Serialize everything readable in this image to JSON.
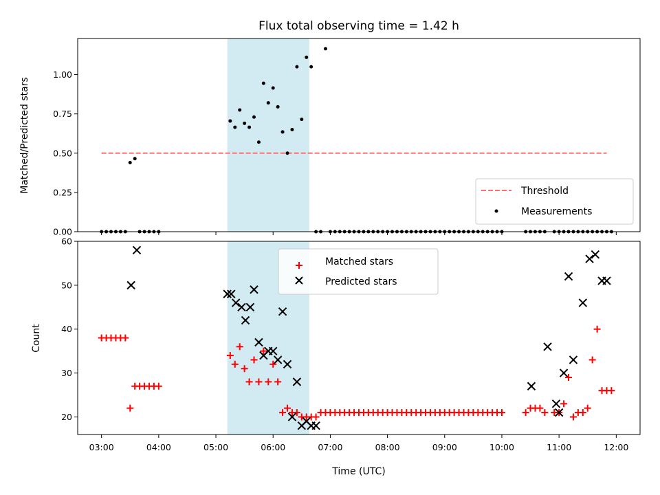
{
  "chart_data": [
    {
      "type": "scatter",
      "title": "Flux total observing time = 1.42 h",
      "xlabel": "",
      "ylabel": "Matched/Predicted stars",
      "xlim": [
        "02:35",
        "12:25"
      ],
      "ylim": [
        0,
        1.23
      ],
      "yticks": [
        0.0,
        0.25,
        0.5,
        0.75,
        1.0
      ],
      "ytick_labels": [
        "0.00",
        "0.25",
        "0.50",
        "0.75",
        "1.00"
      ],
      "shaded_span": [
        "05:12",
        "06:38"
      ],
      "shaded_color": "#add8e6",
      "grid": false,
      "legend_position": "lower right",
      "series": [
        {
          "name": "Threshold",
          "kind": "dashed-line",
          "color": "#ff6f6f",
          "x": [
            "03:00",
            "11:50"
          ],
          "y": [
            0.5,
            0.5
          ]
        },
        {
          "name": "Measurements",
          "kind": "dot",
          "color": "#000000",
          "x": [
            "03:00",
            "03:05",
            "03:10",
            "03:15",
            "03:20",
            "03:25",
            "03:30",
            "03:35",
            "03:40",
            "03:45",
            "03:50",
            "03:55",
            "04:00",
            "05:15",
            "05:20",
            "05:25",
            "05:30",
            "05:35",
            "05:40",
            "05:45",
            "05:50",
            "05:55",
            "06:00",
            "06:05",
            "06:10",
            "06:15",
            "06:20",
            "06:25",
            "06:30",
            "06:35",
            "06:40",
            "06:45",
            "06:50",
            "06:55",
            "07:00",
            "07:05",
            "07:10",
            "07:15",
            "07:20",
            "07:25",
            "07:30",
            "07:35",
            "07:40",
            "07:45",
            "07:50",
            "07:55",
            "08:00",
            "08:05",
            "08:10",
            "08:15",
            "08:20",
            "08:25",
            "08:30",
            "08:35",
            "08:40",
            "08:45",
            "08:50",
            "08:55",
            "09:00",
            "09:05",
            "09:10",
            "09:15",
            "09:20",
            "09:25",
            "09:30",
            "09:35",
            "09:40",
            "09:45",
            "09:50",
            "09:55",
            "10:00",
            "10:25",
            "10:30",
            "10:35",
            "10:40",
            "10:45",
            "10:55",
            "11:00",
            "11:05",
            "11:10",
            "11:15",
            "11:20",
            "11:25",
            "11:30",
            "11:35",
            "11:40",
            "11:45",
            "11:50",
            "11:55"
          ],
          "y": [
            0,
            0,
            0,
            0,
            0,
            0,
            0.44,
            0.465,
            0,
            0,
            0,
            0,
            0,
            0.705,
            0.665,
            0.775,
            0.69,
            0.665,
            0.73,
            0.57,
            0.945,
            0.82,
            0.915,
            0.795,
            0.635,
            0.5,
            0.65,
            1.05,
            0.715,
            1.11,
            1.05,
            0,
            0,
            1.165,
            0,
            0,
            0,
            0,
            0,
            0,
            0,
            0,
            0,
            0,
            0,
            0,
            0,
            0,
            0,
            0,
            0,
            0,
            0,
            0,
            0,
            0,
            0,
            0,
            0,
            0,
            0,
            0,
            0,
            0,
            0,
            0,
            0,
            0,
            0,
            0,
            0,
            0,
            0,
            0,
            0,
            0,
            0,
            0,
            0,
            0,
            0,
            0,
            0,
            0,
            0,
            0,
            0,
            0,
            0
          ]
        }
      ]
    },
    {
      "type": "scatter",
      "title": "",
      "xlabel": "Time (UTC)",
      "ylabel": "Count",
      "xlim": [
        "02:35",
        "12:25"
      ],
      "ylim": [
        16,
        60
      ],
      "yticks": [
        20,
        30,
        40,
        50,
        60
      ],
      "xticks": [
        "03:00",
        "04:00",
        "05:00",
        "06:00",
        "07:00",
        "08:00",
        "09:00",
        "10:00",
        "11:00",
        "12:00"
      ],
      "shaded_span": [
        "05:12",
        "06:38"
      ],
      "shaded_color": "#add8e6",
      "grid": false,
      "legend_position": "upper center",
      "series": [
        {
          "name": "Matched stars",
          "kind": "plus",
          "color": "#ff0000",
          "x": [
            "03:00",
            "03:05",
            "03:10",
            "03:15",
            "03:20",
            "03:25",
            "03:30",
            "03:35",
            "03:40",
            "03:45",
            "03:50",
            "03:55",
            "04:00",
            "05:15",
            "05:20",
            "05:25",
            "05:30",
            "05:35",
            "05:40",
            "05:45",
            "05:50",
            "05:55",
            "06:00",
            "06:05",
            "06:10",
            "06:15",
            "06:20",
            "06:25",
            "06:30",
            "06:35",
            "06:40",
            "06:45",
            "06:50",
            "06:55",
            "07:00",
            "07:05",
            "07:10",
            "07:15",
            "07:20",
            "07:25",
            "07:30",
            "07:35",
            "07:40",
            "07:45",
            "07:50",
            "07:55",
            "08:00",
            "08:05",
            "08:10",
            "08:15",
            "08:20",
            "08:25",
            "08:30",
            "08:35",
            "08:40",
            "08:45",
            "08:50",
            "08:55",
            "09:00",
            "09:05",
            "09:10",
            "09:15",
            "09:20",
            "09:25",
            "09:30",
            "09:35",
            "09:40",
            "09:45",
            "09:50",
            "09:55",
            "10:00",
            "10:25",
            "10:30",
            "10:35",
            "10:40",
            "10:45",
            "10:55",
            "11:00",
            "11:05",
            "11:10",
            "11:15",
            "11:20",
            "11:25",
            "11:30",
            "11:35",
            "11:40",
            "11:45",
            "11:50",
            "11:55"
          ],
          "y": [
            38,
            38,
            38,
            38,
            38,
            38,
            22,
            27,
            27,
            27,
            27,
            27,
            27,
            34,
            32,
            36,
            31,
            28,
            33,
            28,
            35,
            28,
            32,
            28,
            21,
            22,
            21,
            21,
            20,
            20,
            20,
            20,
            21,
            21,
            21,
            21,
            21,
            21,
            21,
            21,
            21,
            21,
            21,
            21,
            21,
            21,
            21,
            21,
            21,
            21,
            21,
            21,
            21,
            21,
            21,
            21,
            21,
            21,
            21,
            21,
            21,
            21,
            21,
            21,
            21,
            21,
            21,
            21,
            21,
            21,
            21,
            21,
            22,
            22,
            22,
            21,
            21,
            21,
            23,
            29,
            20,
            21,
            21,
            22,
            33,
            40,
            26,
            26,
            26
          ]
        },
        {
          "name": "Predicted stars",
          "kind": "x",
          "color": "#000000",
          "x": [
            "03:31",
            "03:37",
            "05:12",
            "05:16",
            "05:21",
            "05:27",
            "05:31",
            "05:36",
            "05:40",
            "05:45",
            "05:50",
            "05:55",
            "06:00",
            "06:05",
            "06:10",
            "06:15",
            "06:20",
            "06:25",
            "06:30",
            "06:35",
            "06:40",
            "06:45",
            "10:31",
            "10:48",
            "10:57",
            "11:00",
            "11:05",
            "11:10",
            "11:15",
            "11:25",
            "11:32",
            "11:38",
            "11:45",
            "11:50"
          ],
          "y": [
            50,
            58,
            48,
            48,
            46,
            45,
            42,
            45,
            49,
            37,
            34,
            35,
            35,
            33,
            44,
            32,
            20,
            28,
            18,
            19,
            18,
            18,
            27,
            36,
            23,
            21,
            30,
            52,
            33,
            46,
            56,
            57,
            51,
            51
          ]
        }
      ]
    }
  ]
}
